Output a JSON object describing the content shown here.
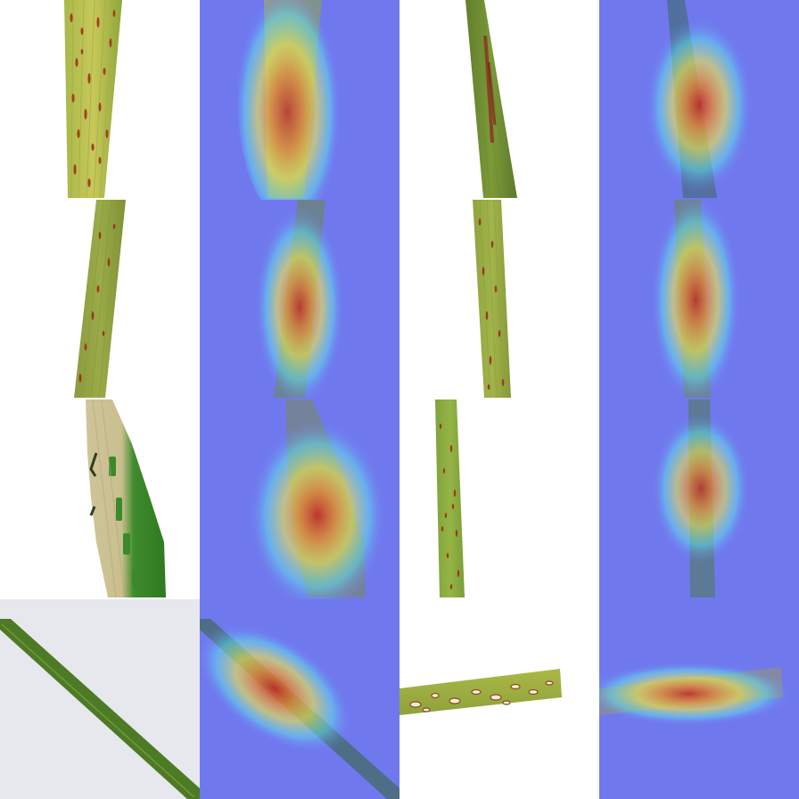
{
  "grid": {
    "rows": 4,
    "columns": 4,
    "pairs": [
      {
        "original": {
          "subject": "leaf-strip-rust-spots",
          "background": "#ffffff"
        },
        "heatmap": {
          "overlay": "gradcam-jet",
          "hotspot": "center-vertical"
        }
      },
      {
        "original": {
          "subject": "leaf-dark-streak",
          "background": "#ffffff"
        },
        "heatmap": {
          "overlay": "gradcam-jet",
          "hotspot": "center"
        }
      },
      {
        "original": {
          "subject": "leaf-tilted-rust-spots",
          "background": "#ffffff"
        },
        "heatmap": {
          "overlay": "gradcam-jet",
          "hotspot": "center"
        }
      },
      {
        "original": {
          "subject": "leaf-thin-rust-spots",
          "background": "#ffffff"
        },
        "heatmap": {
          "overlay": "gradcam-jet",
          "hotspot": "center"
        }
      },
      {
        "original": {
          "subject": "leaf-blight-pale-streaks",
          "background": "#ffffff"
        },
        "heatmap": {
          "overlay": "gradcam-jet",
          "hotspot": "center-left"
        }
      },
      {
        "original": {
          "subject": "leaf-thin-speckled",
          "background": "#ffffff"
        },
        "heatmap": {
          "overlay": "gradcam-jet",
          "hotspot": "center"
        }
      },
      {
        "original": {
          "subject": "leaf-diagonal-healthy",
          "background": "#e6e8ee"
        },
        "heatmap": {
          "overlay": "gradcam-jet",
          "hotspot": "upper-left"
        }
      },
      {
        "original": {
          "subject": "leaf-horizontal-blast-lesions",
          "background": "#ffffff"
        },
        "heatmap": {
          "overlay": "gradcam-jet",
          "hotspot": "center"
        }
      }
    ]
  },
  "colors": {
    "heatmap_cold": "#7078ee",
    "heatmap_cyan": "#5fe6f0",
    "heatmap_yellow": "#f5ef48",
    "heatmap_orange": "#f08a2a",
    "heatmap_red": "#c8281c",
    "leaf_green": "#7d9a38",
    "leaf_yellow": "#b9c24a",
    "lesion_red": "#9c3a1c"
  }
}
